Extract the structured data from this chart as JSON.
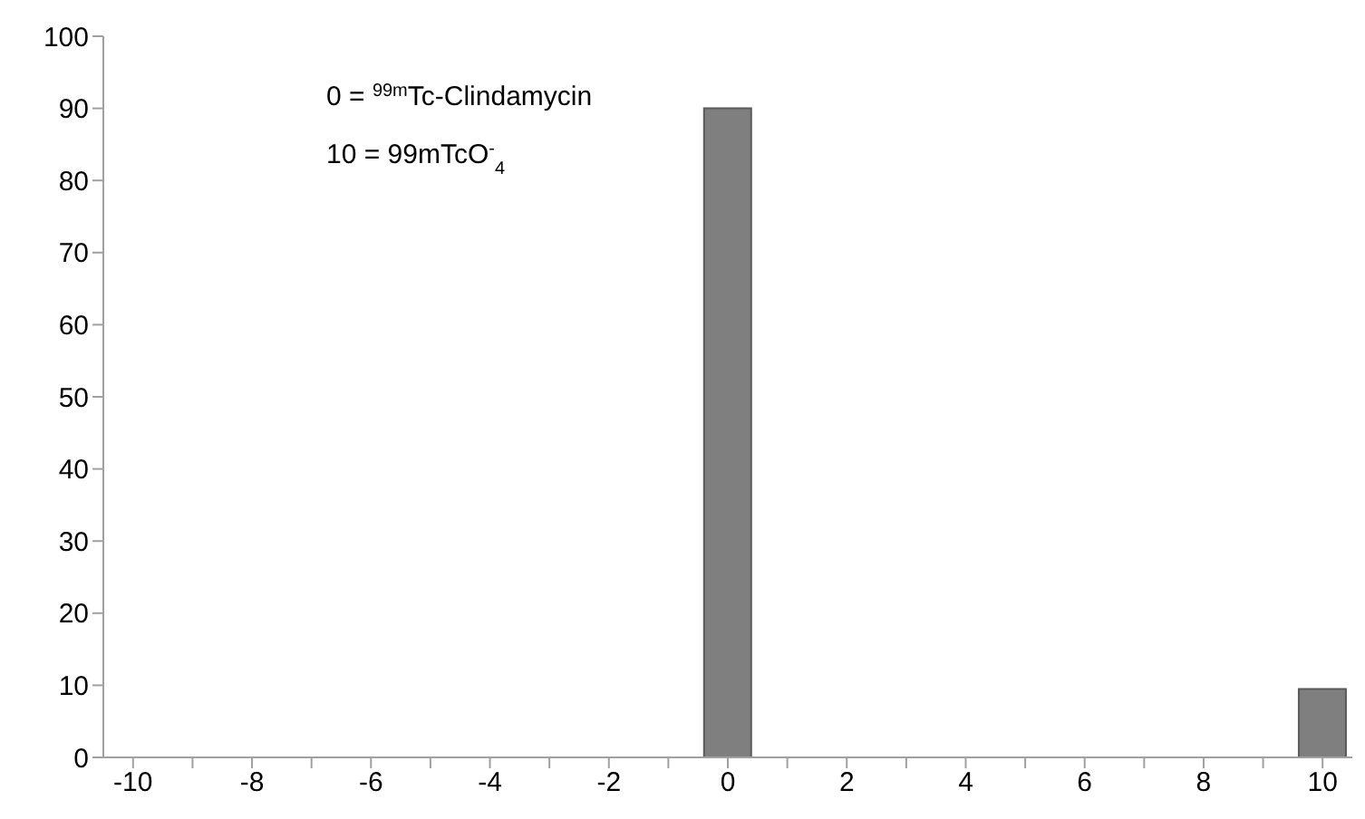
{
  "chart_data": {
    "type": "bar",
    "categories": [
      "-10",
      null,
      "-8",
      null,
      "-6",
      null,
      "-4",
      null,
      "-2",
      null,
      "0",
      null,
      "2",
      null,
      "4",
      null,
      "6",
      null,
      "8",
      null,
      "10"
    ],
    "values": [
      0,
      0,
      0,
      0,
      0,
      0,
      0,
      0,
      0,
      0,
      90,
      0,
      0,
      0,
      0,
      0,
      0,
      0,
      0,
      0,
      9.5
    ],
    "color": "#7f7f7f",
    "ylim": [
      0,
      100
    ],
    "yticks": [
      0,
      10,
      20,
      30,
      40,
      50,
      60,
      70,
      80,
      90,
      100
    ],
    "grid": false,
    "legend": false,
    "annotations": [
      "0 = $^{99m}$Tc-Clindamycin",
      "10 = 99mTcO$^{-}$$_{4}$"
    ]
  }
}
